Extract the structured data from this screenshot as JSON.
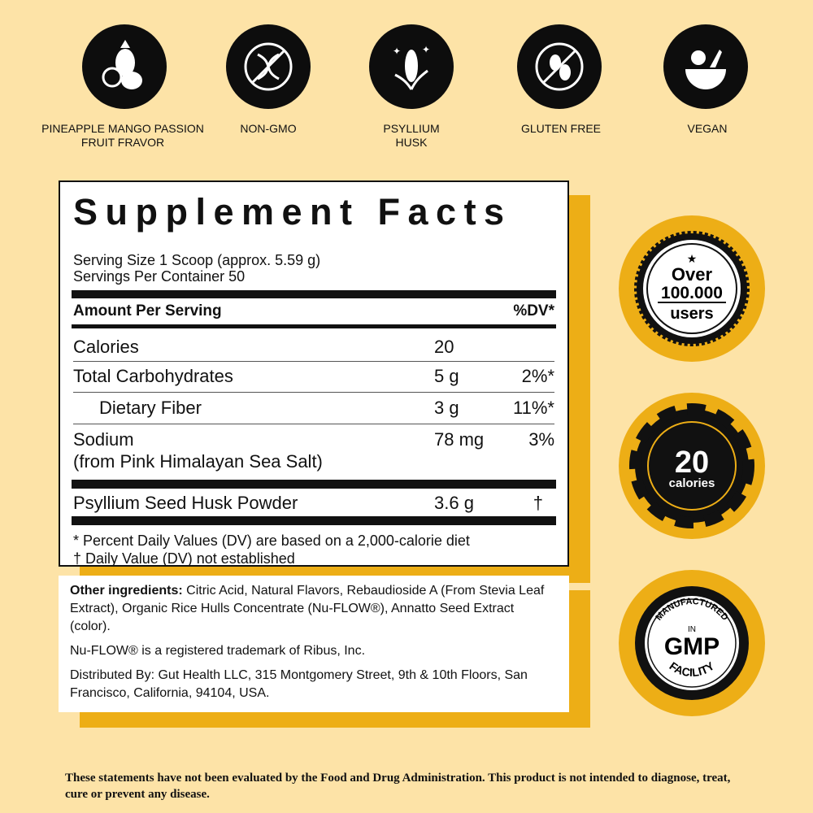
{
  "icons": [
    {
      "name": "fruit-icon",
      "label": "PINEAPPLE MANGO PASSION FRUIT FRAVOR"
    },
    {
      "name": "non-gmo-icon",
      "label": "NON-GMO"
    },
    {
      "name": "psyllium-icon",
      "label": "PSYLLIUM HUSK"
    },
    {
      "name": "gluten-free-icon",
      "label": "GLUTEN FREE"
    },
    {
      "name": "vegan-icon",
      "label": "VEGAN"
    }
  ],
  "facts": {
    "title": "Supplement Facts",
    "serving_size": "Serving Size 1 Scoop (approx. 5.59 g)",
    "servings_per_container": "Servings Per Container 50",
    "amount_header": "Amount Per Serving",
    "dv_header": "%DV*",
    "rows": [
      {
        "name": "Calories",
        "value": "20",
        "dv": ""
      },
      {
        "name": "Total Carbohydrates",
        "value": "5 g",
        "dv": "2%*"
      },
      {
        "name": "Dietary Fiber",
        "value": "3 g",
        "dv": "11%*"
      },
      {
        "name": "Sodium",
        "sub": "(from Pink Himalayan Sea Salt)",
        "value": "78 mg",
        "dv": "3%"
      },
      {
        "name": "Psyllium Seed Husk Powder",
        "value": "3.6 g",
        "dv": "†"
      }
    ],
    "footnote1": "* Percent Daily Values (DV) are based on a 2,000-calorie diet",
    "footnote2": "† Daily Value (DV) not established"
  },
  "ingredients": {
    "label": "Other ingredients:",
    "text": " Citric Acid, Natural Flavors, Rebaudioside A (From Stevia Leaf Extract), Organic Rice Hulls Concentrate (Nu-FLOW®), Annatto Seed Extract (color).",
    "trademark": "Nu-FLOW® is a registered trademark of Ribus, Inc.",
    "distributor": "Distributed By: Gut Health LLC, 315 Montgomery Street, 9th & 10th Floors, San Francisco, California, 94104, USA."
  },
  "badges": {
    "users": {
      "line1": "Over",
      "line2": "100.000",
      "line3": "users"
    },
    "calories": {
      "number": "20",
      "unit": "calories"
    },
    "gmp": {
      "top": "MANUFACTURED",
      "mid": "IN",
      "main": "GMP",
      "bottom": "FACILITY"
    }
  },
  "disclaimer": "These statements have not been evaluated by the Food and Drug Administration. This product is not intended to diagnose, treat, cure or prevent any disease.",
  "colors": {
    "background": "#FDE3A7",
    "accent": "#EDAE16",
    "ink": "#111111"
  }
}
